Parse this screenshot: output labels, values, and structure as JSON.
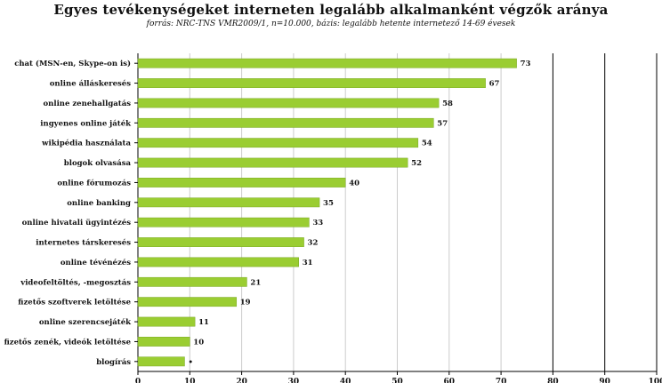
{
  "chart_data": {
    "type": "bar",
    "orientation": "horizontal",
    "title": "Egyes tevékenységeket interneten legalább alkalmanként végzők aránya",
    "subtitle": "forrás: NRC-TNS VMR2009/1, n=10.000, bázis: legalább hetente internetező 14-69 évesek",
    "categories": [
      "chat (MSN-en, Skype-on is)",
      "online álláskeresés",
      "online zenehallgatás",
      "ingyenes online játék",
      "wikipédia használata",
      "blogok olvasása",
      "online fórumozás",
      "online banking",
      "online hivatali ügyintézés",
      "internetes társkeresés",
      "online tévénézés",
      "videofeltöltés, -megosztás",
      "fizetős szoftverek letöltése",
      "online szerencsejáték",
      "fizetős zenék, videók letöltése",
      "blogírás"
    ],
    "values": [
      73,
      67,
      58,
      57,
      54,
      52,
      40,
      35,
      33,
      32,
      31,
      21,
      19,
      11,
      10,
      9
    ],
    "data_labels": [
      "73",
      "67",
      "58",
      "57",
      "54",
      "52",
      "40",
      "35",
      "33",
      "32",
      "31",
      "21",
      "19",
      "11",
      "10",
      "•"
    ],
    "xlim": [
      0,
      100
    ],
    "xticks": [
      0,
      10,
      20,
      30,
      40,
      50,
      60,
      70,
      80,
      90,
      100
    ],
    "grid": "vertical lines at every 10, dark lines at 80, 90, 100",
    "colors": {
      "bar": "#9acd32",
      "bar_edge": "#7aa823",
      "grid_light": "#cccccc",
      "grid_dark": "#000000",
      "text": "#111111"
    }
  }
}
